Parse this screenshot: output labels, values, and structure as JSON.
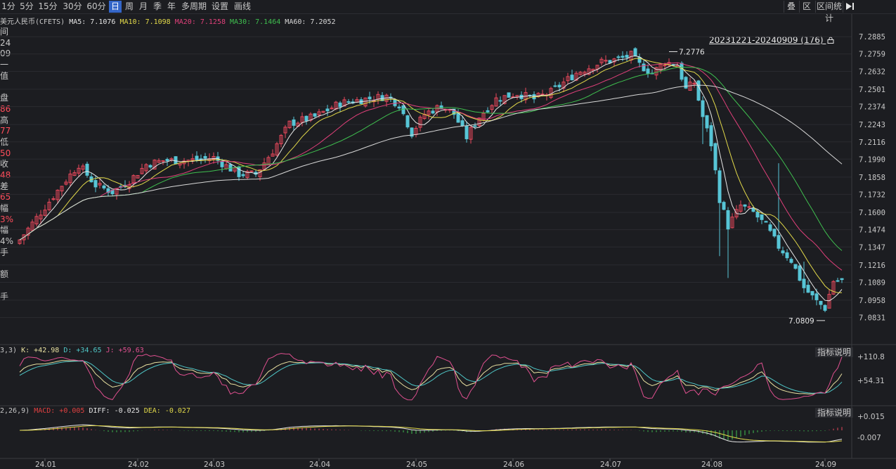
{
  "toolbar": {
    "periods": [
      "1分",
      "5分",
      "15分",
      "30分",
      "60分",
      "日",
      "周",
      "月",
      "季",
      "年",
      "多周期",
      "设置",
      "画线"
    ],
    "active_period": "日",
    "right_buttons": [
      "叠",
      "区",
      "区间统计"
    ],
    "right_icon": "arrow-right-bar-icon",
    "active_color": "#3466c9"
  },
  "legend": {
    "main": {
      "label": "美元人民币(CFETS)",
      "ma5": "MA5: 7.1076",
      "ma10": "MA10: 7.1098",
      "ma20": "MA20: 7.1258",
      "ma30": "MA30: 7.1464",
      "ma60": "MA60: 7.2052"
    },
    "kdj": {
      "params": "3,3)",
      "k": "K: +42.98",
      "d": "D: +34.65",
      "j": "J: +59.63"
    },
    "macd": {
      "params": "2,26,9)",
      "macd": "MACD: +0.005",
      "diff": "DIFF: -0.025",
      "dea": "DEA: -0.027"
    }
  },
  "sidebar_text": [
    "间",
    "24",
    "09",
    "一",
    "值",
    "",
    "盘",
    "86",
    "高",
    "77",
    "低",
    "50",
    "收",
    "48",
    "差",
    "65",
    "幅",
    "3%",
    "幅",
    "4%",
    "手",
    "",
    "额",
    "",
    "手"
  ],
  "range_label": "20231221-20240909 (176)",
  "explain_label": "指标说明",
  "chart_data": {
    "type": "candlestick",
    "title": "美元人民币(CFETS)",
    "up_color": "#e8485b",
    "down_color": "#57c5d6",
    "yticks": [
      "7.2885",
      "7.2759",
      "7.2632",
      "7.2501",
      "7.2374",
      "7.2243",
      "7.2116",
      "7.1990",
      "7.1858",
      "7.1732",
      "7.1600",
      "7.1474",
      "7.1347",
      "7.1216",
      "7.1089",
      "7.0958",
      "7.0831"
    ],
    "ylim": [
      7.0757,
      7.2948
    ],
    "xticks": [
      {
        "label": "24.01",
        "idx": 6
      },
      {
        "label": "24.02",
        "idx": 28
      },
      {
        "label": "24.03",
        "idx": 46
      },
      {
        "label": "24.04",
        "idx": 71
      },
      {
        "label": "24.05",
        "idx": 94
      },
      {
        "label": "24.06",
        "idx": 117
      },
      {
        "label": "24.07",
        "idx": 140
      },
      {
        "label": "24.08",
        "idx": 164
      },
      {
        "label": "24.09",
        "idx": 191
      }
    ],
    "annotations": [
      {
        "text": "7.2776",
        "idx": 154,
        "value": 7.2776,
        "side": "right"
      },
      {
        "text": "7.0809",
        "idx": 191,
        "value": 7.0809,
        "side": "left"
      }
    ],
    "anchors": [
      [
        0,
        7.14
      ],
      [
        5,
        7.16
      ],
      [
        10,
        7.18
      ],
      [
        14,
        7.195
      ],
      [
        18,
        7.18
      ],
      [
        22,
        7.175
      ],
      [
        26,
        7.183
      ],
      [
        30,
        7.195
      ],
      [
        34,
        7.198
      ],
      [
        40,
        7.198
      ],
      [
        46,
        7.2
      ],
      [
        52,
        7.188
      ],
      [
        56,
        7.188
      ],
      [
        60,
        7.205
      ],
      [
        64,
        7.225
      ],
      [
        70,
        7.23
      ],
      [
        76,
        7.24
      ],
      [
        82,
        7.243
      ],
      [
        87,
        7.245
      ],
      [
        90,
        7.239
      ],
      [
        93,
        7.218
      ],
      [
        96,
        7.232
      ],
      [
        100,
        7.238
      ],
      [
        103,
        7.232
      ],
      [
        106,
        7.215
      ],
      [
        109,
        7.23
      ],
      [
        113,
        7.243
      ],
      [
        118,
        7.247
      ],
      [
        122,
        7.243
      ],
      [
        126,
        7.248
      ],
      [
        132,
        7.262
      ],
      [
        138,
        7.27
      ],
      [
        142,
        7.272
      ],
      [
        145,
        7.275
      ],
      [
        147,
        7.268
      ],
      [
        150,
        7.262
      ],
      [
        153,
        7.27
      ],
      [
        156,
        7.268
      ],
      [
        158,
        7.25
      ],
      [
        160,
        7.255
      ],
      [
        162,
        7.23
      ],
      [
        164,
        7.21
      ],
      [
        166,
        7.17
      ],
      [
        168,
        7.15
      ],
      [
        171,
        7.165
      ],
      [
        174,
        7.16
      ],
      [
        177,
        7.15
      ],
      [
        180,
        7.135
      ],
      [
        183,
        7.125
      ],
      [
        186,
        7.105
      ],
      [
        189,
        7.095
      ],
      [
        191,
        7.09
      ],
      [
        193,
        7.11
      ]
    ],
    "kdj_ticks": [
      "+110.8",
      "+54.31"
    ],
    "macd_ticks": [
      "+0.015",
      "-0.007"
    ]
  }
}
